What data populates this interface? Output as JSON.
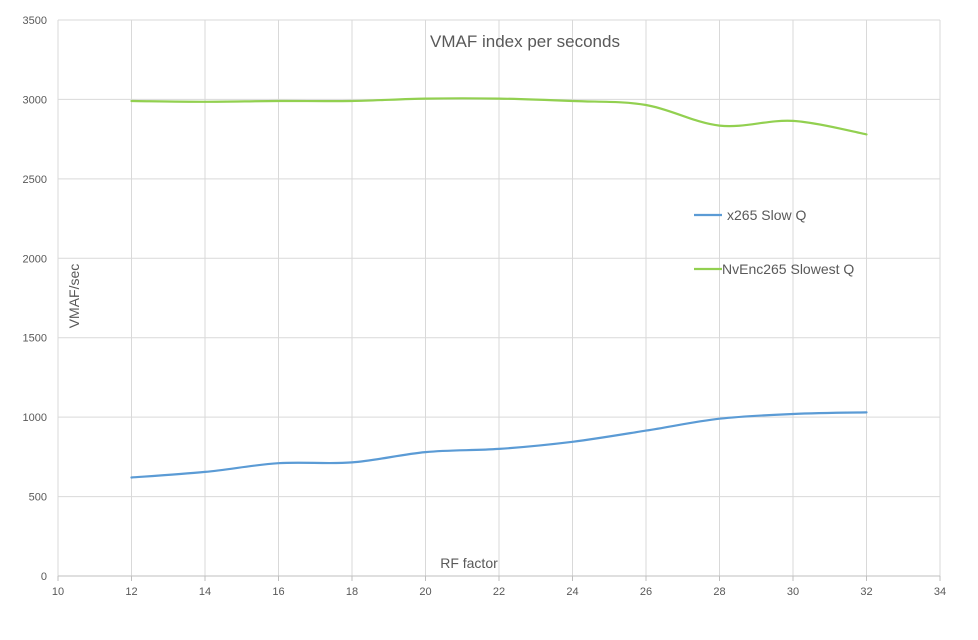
{
  "chart_data": {
    "type": "line",
    "title": "VMAF index per seconds",
    "xlabel": "RF factor",
    "ylabel": "VMAF/sec",
    "xlim": [
      10,
      34
    ],
    "ylim": [
      0,
      3500
    ],
    "x_ticks": [
      10,
      12,
      14,
      16,
      18,
      20,
      22,
      24,
      26,
      28,
      30,
      32,
      34
    ],
    "y_ticks": [
      0,
      500,
      1000,
      1500,
      2000,
      2500,
      3000,
      3500
    ],
    "grid": true,
    "legend_position": "right",
    "x": [
      12,
      14,
      16,
      18,
      20,
      22,
      24,
      26,
      28,
      30,
      32
    ],
    "series": [
      {
        "name": "x265 Slow Q",
        "color": "#5b9bd5",
        "values": [
          620,
          655,
          710,
          715,
          780,
          800,
          845,
          915,
          990,
          1020,
          1030
        ]
      },
      {
        "name": "NvEnc265 Slowest Q",
        "color": "#92d050",
        "values": [
          2990,
          2985,
          2990,
          2990,
          3005,
          3005,
          2990,
          2965,
          2835,
          2865,
          2780
        ]
      }
    ]
  }
}
